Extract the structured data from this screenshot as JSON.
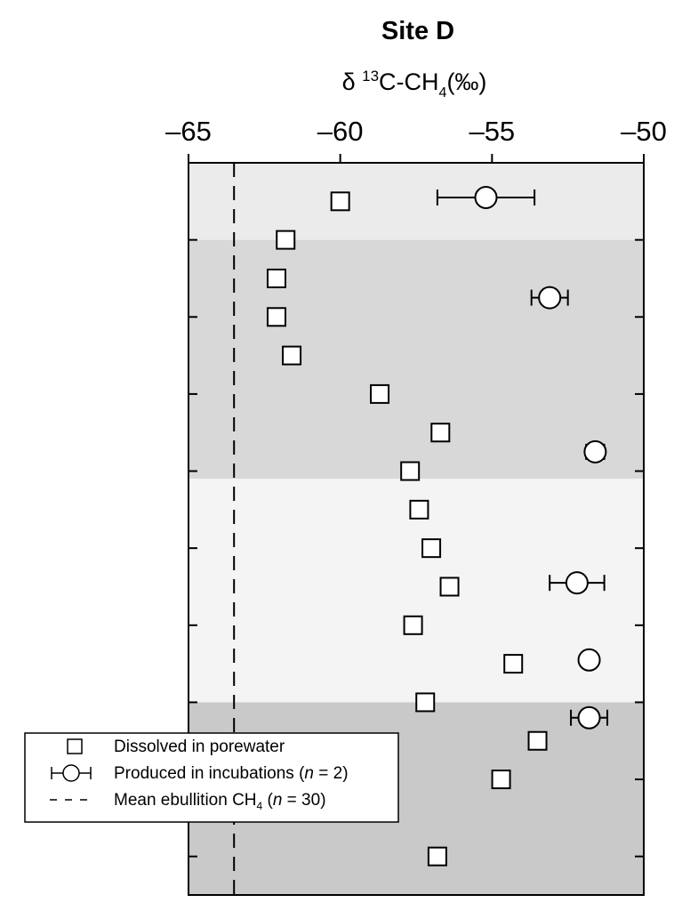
{
  "chart_data": {
    "type": "scatter",
    "title": "Site D",
    "xlabel": {
      "prefix": "δ ",
      "sup": "13",
      "main": "C-CH",
      "sub": "4",
      "suffix": "(‰)"
    },
    "xlim": [
      -65,
      -50
    ],
    "x_ticks": [
      -65,
      -60,
      -55,
      -50
    ],
    "x_tick_labels": [
      "–65",
      "–60",
      "–55",
      "–50"
    ],
    "y_axis": {
      "direction": "depth-downward",
      "ylim": [
        0,
        9.5
      ],
      "tick_values": [
        1,
        2,
        3,
        4,
        5,
        6,
        7,
        8,
        9
      ],
      "tick_labels_shown": false
    },
    "background_bands": [
      {
        "y_range": [
          0,
          1
        ],
        "color": "#ebebeb"
      },
      {
        "y_range": [
          1,
          4.1
        ],
        "color": "#d8d8d8"
      },
      {
        "y_range": [
          4.1,
          7
        ],
        "color": "#f4f4f4"
      },
      {
        "y_range": [
          7,
          9.5
        ],
        "color": "#c9c9c9"
      }
    ],
    "reference_line": {
      "x": -63.5,
      "style": "dashed"
    },
    "series": [
      {
        "name": "Dissolved in porewater",
        "marker": "square",
        "points": [
          {
            "x": -60.0,
            "y": 0.5
          },
          {
            "x": -61.8,
            "y": 1.0
          },
          {
            "x": -62.1,
            "y": 1.5
          },
          {
            "x": -62.1,
            "y": 2.0
          },
          {
            "x": -61.6,
            "y": 2.5
          },
          {
            "x": -58.7,
            "y": 3.0
          },
          {
            "x": -56.7,
            "y": 3.5
          },
          {
            "x": -57.7,
            "y": 4.0
          },
          {
            "x": -57.4,
            "y": 4.5
          },
          {
            "x": -57.0,
            "y": 5.0
          },
          {
            "x": -56.4,
            "y": 5.5
          },
          {
            "x": -57.6,
            "y": 6.0
          },
          {
            "x": -54.3,
            "y": 6.5
          },
          {
            "x": -57.2,
            "y": 7.0
          },
          {
            "x": -53.5,
            "y": 7.5
          },
          {
            "x": -54.7,
            "y": 8.0
          },
          {
            "x": -56.8,
            "y": 9.0
          }
        ]
      },
      {
        "name": "Produced in incubations (n = 2)",
        "marker": "circle-errorbar",
        "points": [
          {
            "x": -55.2,
            "y": 0.45,
            "xerr_low": -56.8,
            "xerr_high": -53.6
          },
          {
            "x": -53.1,
            "y": 1.75,
            "xerr_low": -53.7,
            "xerr_high": -52.5
          },
          {
            "x": -51.6,
            "y": 3.75,
            "xerr_low": -51.9,
            "xerr_high": -51.3
          },
          {
            "x": -52.2,
            "y": 5.45,
            "xerr_low": -53.1,
            "xerr_high": -51.3
          },
          {
            "x": -51.8,
            "y": 6.45,
            "xerr_low": -51.9,
            "xerr_high": -51.6
          },
          {
            "x": -51.8,
            "y": 7.2,
            "xerr_low": -52.4,
            "xerr_high": -51.2
          }
        ]
      }
    ],
    "legend": {
      "placement": "bottom-left",
      "entries": [
        {
          "marker": "square",
          "text": "Dissolved in porewater"
        },
        {
          "marker": "circle-errorbar",
          "text": "Produced in incubations (",
          "italic": "n",
          "tail": " = 2)"
        },
        {
          "marker": "dashed-line",
          "text": "Mean ebullition CH",
          "sub": "4",
          "text2": " (",
          "italic": "n",
          "tail": " = 30)"
        }
      ]
    }
  }
}
